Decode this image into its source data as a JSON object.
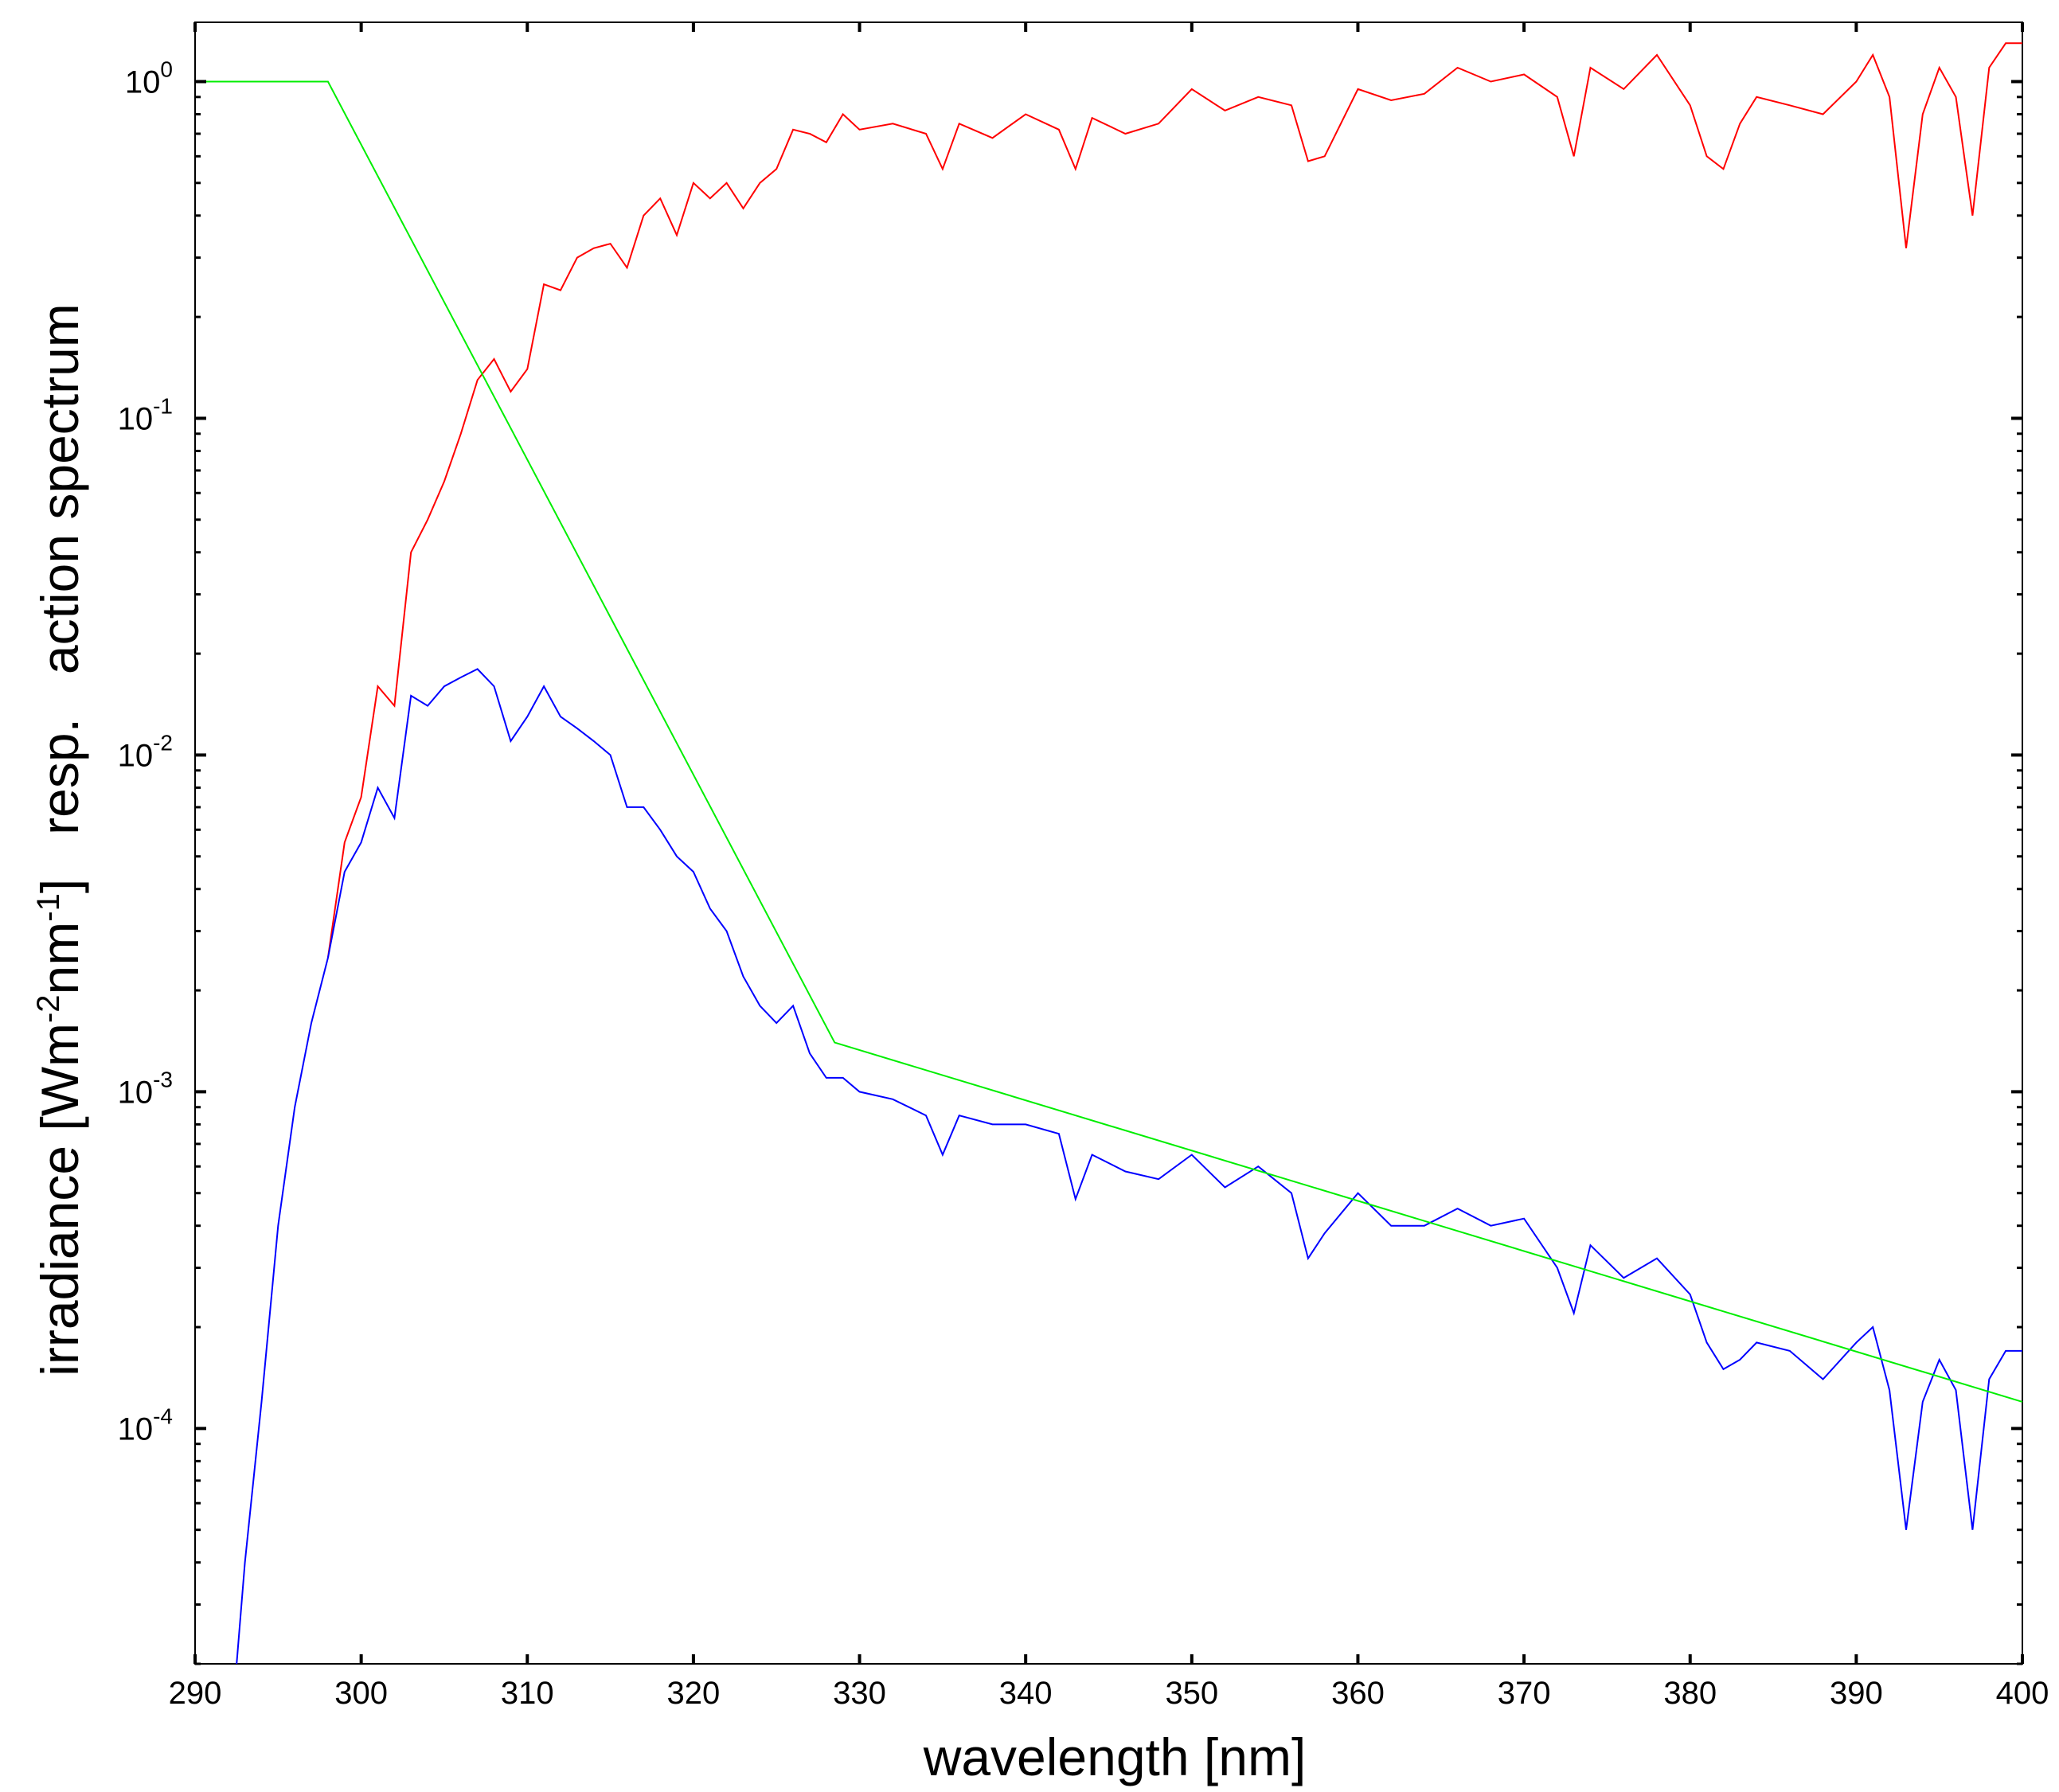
{
  "chart_data": {
    "type": "line",
    "xlabel": "wavelength [nm]",
    "ylabel_parts": {
      "main": "irradiance [Wm",
      "sup1": "-2",
      "mid": "nm",
      "sup2": "-1",
      "tail": "]   resp.   action spectrum"
    },
    "x_scale": "linear",
    "y_scale": "log",
    "xlim": [
      290,
      400
    ],
    "ylim": [
      2e-05,
      1.5
    ],
    "grid": false,
    "x_ticks": [
      290,
      300,
      310,
      320,
      330,
      340,
      350,
      360,
      370,
      380,
      390,
      400
    ],
    "x_tick_labels": [
      "290",
      "300",
      "310",
      "320",
      "330",
      "340",
      "350",
      "360",
      "370",
      "380",
      "390",
      "400"
    ],
    "y_ticks": [
      {
        "value": 1,
        "base": "10",
        "exp": "0"
      },
      {
        "value": 0.1,
        "base": "10",
        "exp": "-1"
      },
      {
        "value": 0.01,
        "base": "10",
        "exp": "-2"
      },
      {
        "value": 0.001,
        "base": "10",
        "exp": "-3"
      },
      {
        "value": 0.0001,
        "base": "10",
        "exp": "-4"
      }
    ],
    "series": [
      {
        "color": "#ff0000",
        "x": [
          298,
          299,
          300,
          301,
          302,
          303,
          304,
          305,
          306,
          307,
          308,
          309,
          310,
          311,
          312,
          313,
          314,
          315,
          316,
          317,
          318,
          319,
          320,
          321,
          322,
          323,
          324,
          325,
          326,
          327,
          328,
          329,
          330,
          332,
          334,
          335,
          336,
          338,
          340,
          342,
          343,
          344,
          346,
          348,
          350,
          352,
          354,
          356,
          357,
          358,
          360,
          362,
          364,
          366,
          368,
          370,
          372,
          373,
          374,
          376,
          378,
          380,
          381,
          382,
          383,
          384,
          386,
          388,
          390,
          391,
          392,
          393,
          394,
          395,
          396,
          397,
          398,
          399,
          400
        ],
        "y": [
          0.0025,
          0.0055,
          0.0075,
          0.016,
          0.014,
          0.04,
          0.05,
          0.065,
          0.09,
          0.13,
          0.15,
          0.12,
          0.14,
          0.25,
          0.24,
          0.3,
          0.32,
          0.33,
          0.28,
          0.4,
          0.45,
          0.35,
          0.5,
          0.45,
          0.5,
          0.42,
          0.5,
          0.55,
          0.72,
          0.7,
          0.66,
          0.8,
          0.72,
          0.75,
          0.7,
          0.55,
          0.75,
          0.68,
          0.8,
          0.72,
          0.55,
          0.78,
          0.7,
          0.75,
          0.95,
          0.82,
          0.9,
          0.85,
          0.58,
          0.6,
          0.95,
          0.88,
          0.92,
          1.1,
          1.0,
          1.05,
          0.9,
          0.6,
          1.1,
          0.95,
          1.2,
          0.85,
          0.6,
          0.55,
          0.75,
          0.9,
          0.85,
          0.8,
          1.0,
          1.2,
          0.9,
          0.32,
          0.8,
          1.1,
          0.9,
          0.4,
          1.1,
          1.3,
          1.3
        ]
      },
      {
        "color": "#0000ff",
        "x": [
          292.5,
          293,
          294,
          295,
          296,
          297,
          298,
          299,
          300,
          301,
          302,
          303,
          304,
          305,
          306,
          307,
          308,
          309,
          310,
          311,
          312,
          313,
          314,
          315,
          316,
          317,
          318,
          319,
          320,
          321,
          322,
          323,
          324,
          325,
          326,
          327,
          328,
          329,
          330,
          332,
          334,
          335,
          336,
          338,
          340,
          342,
          343,
          344,
          346,
          348,
          350,
          352,
          354,
          356,
          357,
          358,
          360,
          362,
          364,
          366,
          368,
          370,
          372,
          373,
          374,
          376,
          378,
          380,
          381,
          382,
          383,
          384,
          386,
          388,
          390,
          391,
          392,
          393,
          394,
          395,
          396,
          397,
          398,
          399,
          400
        ],
        "y": [
          2e-05,
          4e-05,
          0.00012,
          0.0004,
          0.0009,
          0.0016,
          0.0025,
          0.0045,
          0.0055,
          0.008,
          0.0065,
          0.015,
          0.014,
          0.016,
          0.017,
          0.018,
          0.016,
          0.011,
          0.013,
          0.016,
          0.013,
          0.012,
          0.011,
          0.01,
          0.007,
          0.007,
          0.006,
          0.005,
          0.0045,
          0.0035,
          0.003,
          0.0022,
          0.0018,
          0.0016,
          0.0018,
          0.0013,
          0.0011,
          0.0011,
          0.001,
          0.00095,
          0.00085,
          0.00065,
          0.00085,
          0.0008,
          0.0008,
          0.00075,
          0.00048,
          0.00065,
          0.00058,
          0.00055,
          0.00065,
          0.00052,
          0.0006,
          0.0005,
          0.00032,
          0.00038,
          0.0005,
          0.0004,
          0.0004,
          0.00045,
          0.0004,
          0.00042,
          0.0003,
          0.00022,
          0.00035,
          0.00028,
          0.00032,
          0.00025,
          0.00018,
          0.00015,
          0.00016,
          0.00018,
          0.00017,
          0.00014,
          0.00018,
          0.0002,
          0.00013,
          5e-05,
          0.00012,
          0.00016,
          0.00013,
          5e-05,
          0.00014,
          0.00017,
          0.00017
        ]
      },
      {
        "color": "#00ee00",
        "x": [
          290,
          298,
          328.5,
          400
        ],
        "y": [
          1.0,
          1.0,
          0.0014,
          0.00012
        ]
      }
    ]
  }
}
